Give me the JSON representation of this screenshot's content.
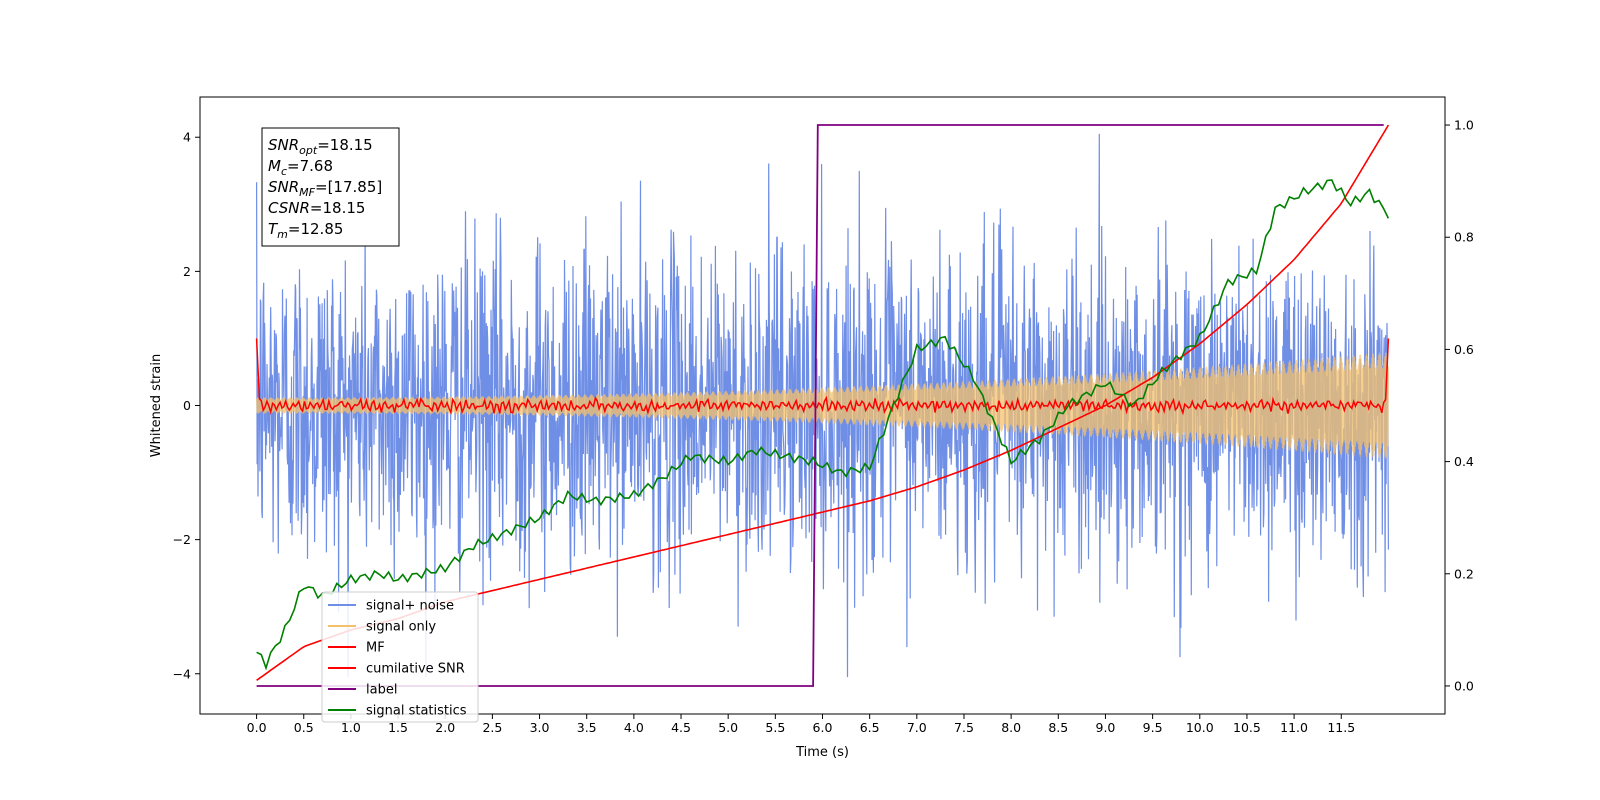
{
  "chart_data": {
    "type": "line",
    "xlabel": "Time (s)",
    "ylabel": "Whitened strain",
    "xlim": [
      -0.6,
      12.6
    ],
    "ylim": [
      -4.6,
      4.6
    ],
    "y2lim": [
      -0.05,
      1.05
    ],
    "x_ticks": [
      "0.0",
      "0.5",
      "1.0",
      "1.5",
      "2.0",
      "2.5",
      "3.0",
      "3.5",
      "4.0",
      "4.5",
      "5.0",
      "5.5",
      "6.0",
      "6.5",
      "7.0",
      "7.5",
      "8.0",
      "8.5",
      "9.0",
      "9.5",
      "10.0",
      "10.5",
      "11.0",
      "11.5"
    ],
    "y_ticks": [
      "4",
      "2",
      "0",
      "−2",
      "−4"
    ],
    "y2_ticks": [
      "1.0",
      "0.8",
      "0.6",
      "0.4",
      "0.2",
      "0.0"
    ],
    "legend_position": "lower-left",
    "colors": {
      "signal_noise": "#6f8ee6",
      "signal_only": "#f5c06a",
      "mf": "#ff0000",
      "cumulative_snr": "#ff0000",
      "label": "#800080",
      "signal_statistics": "#008000"
    },
    "annotation": {
      "snr_opt": {
        "sym": "SNR",
        "sub": "opt",
        "value": "=18.15"
      },
      "mc": {
        "sym": "M",
        "sub": "c",
        "value": "=7.68"
      },
      "snr_mf": {
        "sym": "SNR",
        "sub": "MF",
        "value": "=[17.85]"
      },
      "csnr": {
        "sym": "CSNR",
        "sub": "",
        "value": "=18.15"
      },
      "tm": {
        "sym": "T",
        "sub": "m",
        "value": "=12.85"
      }
    },
    "series": [
      {
        "name": "signal+ noise",
        "axis": "left",
        "description_values": "noise band approx within [-3.5, 3.6] with spikes to 4.1 and -4.1"
      },
      {
        "name": "signal only",
        "axis": "left",
        "envelope": {
          "x": [
            0,
            12
          ],
          "amplitude": [
            0.12,
            0.8
          ]
        }
      },
      {
        "name": "MF",
        "axis": "left",
        "x": [
          0.0,
          0.03,
          0.1,
          12.0,
          12.0
        ],
        "y": [
          1.0,
          0.1,
          0.0,
          0.0,
          1.0
        ]
      },
      {
        "name": "cumilative SNR",
        "axis": "right",
        "x": [
          0.0,
          0.5,
          1.0,
          1.5,
          2.0,
          2.5,
          3.0,
          3.5,
          4.0,
          4.5,
          5.0,
          5.5,
          6.0,
          6.5,
          7.0,
          7.5,
          8.0,
          8.5,
          9.0,
          9.5,
          10.0,
          10.5,
          11.0,
          11.5,
          12.0
        ],
        "y": [
          0.01,
          0.07,
          0.1,
          0.12,
          0.15,
          0.17,
          0.19,
          0.21,
          0.23,
          0.25,
          0.27,
          0.29,
          0.31,
          0.33,
          0.355,
          0.385,
          0.42,
          0.46,
          0.5,
          0.55,
          0.61,
          0.68,
          0.76,
          0.86,
          1.0
        ]
      },
      {
        "name": "label",
        "axis": "right",
        "x": [
          0.0,
          5.9,
          5.95,
          11.95
        ],
        "y": [
          0.0,
          0.0,
          1.0,
          1.0
        ]
      },
      {
        "name": "signal statistics",
        "axis": "right",
        "x": [
          0.0,
          0.1,
          0.3,
          0.5,
          0.7,
          1.0,
          1.3,
          1.5,
          2.0,
          2.3,
          2.6,
          3.0,
          3.3,
          3.6,
          4.0,
          4.3,
          4.6,
          5.0,
          5.3,
          5.6,
          5.9,
          6.2,
          6.5,
          6.8,
          7.0,
          7.3,
          7.6,
          8.0,
          8.3,
          8.6,
          9.0,
          9.3,
          9.6,
          10.0,
          10.3,
          10.6,
          10.8,
          11.1,
          11.4,
          11.6,
          11.8,
          12.0
        ],
        "y": [
          0.06,
          0.04,
          0.1,
          0.18,
          0.16,
          0.19,
          0.2,
          0.19,
          0.21,
          0.25,
          0.27,
          0.3,
          0.34,
          0.33,
          0.34,
          0.37,
          0.41,
          0.4,
          0.42,
          0.41,
          0.4,
          0.38,
          0.39,
          0.52,
          0.6,
          0.62,
          0.55,
          0.4,
          0.44,
          0.5,
          0.54,
          0.5,
          0.56,
          0.62,
          0.72,
          0.74,
          0.85,
          0.88,
          0.9,
          0.86,
          0.88,
          0.84
        ]
      }
    ]
  }
}
